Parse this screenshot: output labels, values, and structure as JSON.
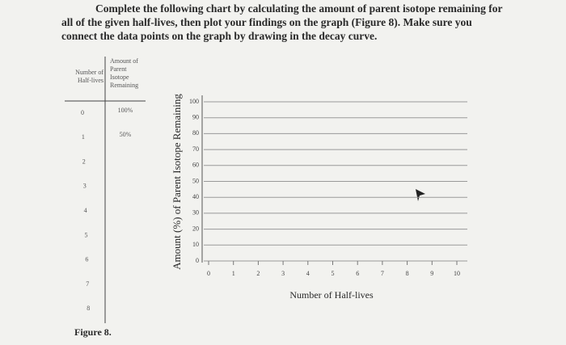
{
  "instructions": [
    "Complete the following chart by calculating the amount of parent isotope remaining for",
    "all of the given half-lives, then plot your findings on the graph (Figure 8). Make sure you",
    "connect the data points on the graph by drawing in the decay curve."
  ],
  "table": {
    "header_left": [
      "Number of",
      "Half-lives"
    ],
    "header_right": [
      "Amount of",
      "Parent",
      "Isotope",
      "Remaining"
    ],
    "half_lives": [
      "0",
      "1",
      "2",
      "3",
      "4",
      "5",
      "6",
      "7",
      "8"
    ],
    "amounts": [
      "100%",
      "50%"
    ]
  },
  "figure_label": "Figure 8.",
  "graph": {
    "y_label": "Amount (%) of Parent Isotope Remaining",
    "x_label": "Number of Half-lives",
    "ylim": [
      0,
      100
    ],
    "yticks": [
      0,
      10,
      20,
      30,
      40,
      50,
      60,
      70,
      80,
      90,
      100
    ],
    "xlim": [
      0,
      10
    ],
    "xticks": [
      0,
      1,
      2,
      3,
      4,
      5,
      6,
      7,
      8,
      9,
      10
    ]
  }
}
